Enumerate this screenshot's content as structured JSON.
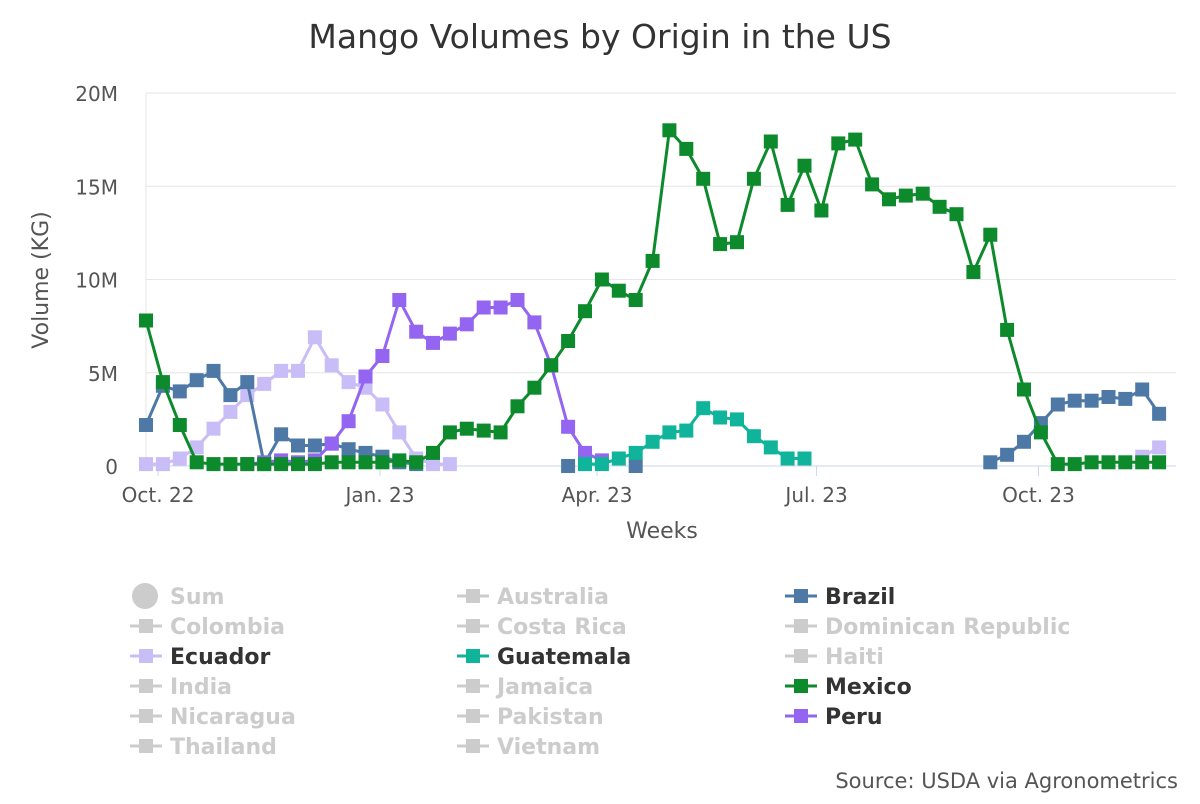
{
  "chart_data": {
    "type": "line",
    "title": "Mango Volumes by Origin in the US",
    "xlabel": "Weeks",
    "ylabel": "Volume (KG)",
    "source": "Source: USDA via Agronometrics",
    "ylim": [
      0,
      20000000
    ],
    "yticks": [
      {
        "value": 0,
        "label": "0"
      },
      {
        "value": 5000000,
        "label": "5M"
      },
      {
        "value": 10000000,
        "label": "10M"
      },
      {
        "value": 15000000,
        "label": "15M"
      },
      {
        "value": 20000000,
        "label": "20M"
      }
    ],
    "xlim": [
      "2022-09-26",
      "2023-11-27"
    ],
    "xticks": [
      {
        "date": "2022-10-01",
        "label": "Oct. 22"
      },
      {
        "date": "2023-01-01",
        "label": "Jan. 23"
      },
      {
        "date": "2023-04-01",
        "label": "Apr. 23"
      },
      {
        "date": "2023-07-01",
        "label": "Jul. 23"
      },
      {
        "date": "2023-10-01",
        "label": "Oct. 23"
      }
    ],
    "grid": {
      "horizontal": true,
      "vertical": false
    },
    "legend_position": "bottom",
    "series": [
      {
        "name": "Ecuador",
        "color": "#c9bdf7",
        "visible": true,
        "points": [
          [
            "2022-09-26",
            0.1
          ],
          [
            "2022-10-03",
            0.1
          ],
          [
            "2022-10-10",
            0.4
          ],
          [
            "2022-10-17",
            1.0
          ],
          [
            "2022-10-24",
            2.0
          ],
          [
            "2022-10-31",
            2.9
          ],
          [
            "2022-11-07",
            3.8
          ],
          [
            "2022-11-14",
            4.4
          ],
          [
            "2022-11-21",
            5.1
          ],
          [
            "2022-11-28",
            5.1
          ],
          [
            "2022-12-05",
            6.9
          ],
          [
            "2022-12-12",
            5.4
          ],
          [
            "2022-12-19",
            4.5
          ],
          [
            "2022-12-26",
            4.2
          ],
          [
            "2023-01-02",
            3.3
          ],
          [
            "2023-01-09",
            1.8
          ],
          [
            "2023-01-16",
            0.4
          ],
          [
            "2023-01-23",
            0.1
          ],
          [
            "2023-01-30",
            0.1
          ],
          null,
          [
            "2023-11-13",
            0.5
          ],
          [
            "2023-11-20",
            1.0
          ]
        ]
      },
      {
        "name": "Brazil",
        "color": "#4e79a7",
        "visible": true,
        "points": [
          [
            "2022-09-26",
            2.2
          ],
          [
            "2022-10-03",
            4.3
          ],
          [
            "2022-10-10",
            4.0
          ],
          [
            "2022-10-17",
            4.6
          ],
          [
            "2022-10-24",
            5.1
          ],
          [
            "2022-10-31",
            3.8
          ],
          [
            "2022-11-07",
            4.5
          ],
          [
            "2022-11-14",
            0.1
          ],
          [
            "2022-11-21",
            1.7
          ],
          [
            "2022-11-28",
            1.1
          ],
          [
            "2022-12-05",
            1.1
          ],
          [
            "2022-12-12",
            1.2
          ],
          [
            "2022-12-19",
            0.9
          ],
          [
            "2022-12-26",
            0.7
          ],
          [
            "2023-01-02",
            0.5
          ],
          [
            "2023-01-09",
            0.2
          ],
          [
            "2023-01-16",
            0.1
          ],
          null,
          [
            "2023-03-20",
            0.0
          ],
          null,
          [
            "2023-04-17",
            0.0
          ],
          null,
          [
            "2023-09-11",
            0.2
          ],
          [
            "2023-09-18",
            0.6
          ],
          [
            "2023-09-25",
            1.3
          ],
          [
            "2023-10-02",
            2.3
          ],
          [
            "2023-10-09",
            3.3
          ],
          [
            "2023-10-16",
            3.5
          ],
          [
            "2023-10-23",
            3.5
          ],
          [
            "2023-10-30",
            3.7
          ],
          [
            "2023-11-06",
            3.6
          ],
          [
            "2023-11-13",
            4.1
          ],
          [
            "2023-11-20",
            2.8
          ]
        ]
      },
      {
        "name": "Peru",
        "color": "#9465f0",
        "visible": true,
        "points": [
          [
            "2022-11-07",
            0.1
          ],
          [
            "2022-11-14",
            0.2
          ],
          [
            "2022-11-21",
            0.3
          ],
          [
            "2022-11-28",
            0.2
          ],
          [
            "2022-12-05",
            0.3
          ],
          [
            "2022-12-12",
            1.2
          ],
          [
            "2022-12-19",
            2.4
          ],
          [
            "2022-12-26",
            4.8
          ],
          [
            "2023-01-02",
            5.9
          ],
          [
            "2023-01-09",
            8.9
          ],
          [
            "2023-01-16",
            7.2
          ],
          [
            "2023-01-23",
            6.6
          ],
          [
            "2023-01-30",
            7.1
          ],
          [
            "2023-02-06",
            7.6
          ],
          [
            "2023-02-13",
            8.5
          ],
          [
            "2023-02-20",
            8.5
          ],
          [
            "2023-02-27",
            8.9
          ],
          [
            "2023-03-06",
            7.7
          ],
          [
            "2023-03-13",
            5.4
          ],
          [
            "2023-03-20",
            2.1
          ],
          [
            "2023-03-27",
            0.7
          ],
          [
            "2023-04-03",
            0.3
          ]
        ]
      },
      {
        "name": "Guatemala",
        "color": "#0fb49b",
        "visible": true,
        "points": [
          [
            "2023-03-27",
            0.1
          ],
          [
            "2023-04-03",
            0.1
          ],
          [
            "2023-04-10",
            0.4
          ],
          [
            "2023-04-17",
            0.7
          ],
          [
            "2023-04-24",
            1.3
          ],
          [
            "2023-05-01",
            1.8
          ],
          [
            "2023-05-08",
            1.9
          ],
          [
            "2023-05-15",
            3.1
          ],
          [
            "2023-05-22",
            2.6
          ],
          [
            "2023-05-29",
            2.5
          ],
          [
            "2023-06-05",
            1.6
          ],
          [
            "2023-06-12",
            1.0
          ],
          [
            "2023-06-19",
            0.4
          ],
          [
            "2023-06-26",
            0.4
          ]
        ]
      },
      {
        "name": "Mexico",
        "color": "#0c8a2c",
        "visible": true,
        "points": [
          [
            "2022-09-26",
            7.8
          ],
          [
            "2022-10-03",
            4.5
          ],
          [
            "2022-10-10",
            2.2
          ],
          [
            "2022-10-17",
            0.2
          ],
          [
            "2022-10-24",
            0.1
          ],
          [
            "2022-10-31",
            0.1
          ],
          [
            "2022-11-07",
            0.1
          ],
          [
            "2022-11-14",
            0.1
          ],
          [
            "2022-11-21",
            0.1
          ],
          [
            "2022-11-28",
            0.1
          ],
          [
            "2022-12-05",
            0.1
          ],
          [
            "2022-12-12",
            0.2
          ],
          [
            "2022-12-19",
            0.2
          ],
          [
            "2022-12-26",
            0.2
          ],
          [
            "2023-01-02",
            0.2
          ],
          [
            "2023-01-09",
            0.3
          ],
          [
            "2023-01-16",
            0.2
          ],
          [
            "2023-01-23",
            0.7
          ],
          [
            "2023-01-30",
            1.8
          ],
          [
            "2023-02-06",
            2.0
          ],
          [
            "2023-02-13",
            1.9
          ],
          [
            "2023-02-20",
            1.8
          ],
          [
            "2023-02-27",
            3.2
          ],
          [
            "2023-03-06",
            4.2
          ],
          [
            "2023-03-13",
            5.4
          ],
          [
            "2023-03-20",
            6.7
          ],
          [
            "2023-03-27",
            8.3
          ],
          [
            "2023-04-03",
            10.0
          ],
          [
            "2023-04-10",
            9.4
          ],
          [
            "2023-04-17",
            8.9
          ],
          [
            "2023-04-24",
            11.0
          ],
          [
            "2023-05-01",
            18.0
          ],
          [
            "2023-05-08",
            17.0
          ],
          [
            "2023-05-15",
            15.4
          ],
          [
            "2023-05-22",
            11.9
          ],
          [
            "2023-05-29",
            12.0
          ],
          [
            "2023-06-05",
            15.4
          ],
          [
            "2023-06-12",
            17.4
          ],
          [
            "2023-06-19",
            14.0
          ],
          [
            "2023-06-26",
            16.1
          ],
          [
            "2023-07-03",
            13.7
          ],
          [
            "2023-07-10",
            17.3
          ],
          [
            "2023-07-17",
            17.5
          ],
          [
            "2023-07-24",
            15.1
          ],
          [
            "2023-07-31",
            14.3
          ],
          [
            "2023-08-07",
            14.5
          ],
          [
            "2023-08-14",
            14.6
          ],
          [
            "2023-08-21",
            13.9
          ],
          [
            "2023-08-28",
            13.5
          ],
          [
            "2023-09-04",
            10.4
          ],
          [
            "2023-09-11",
            12.4
          ],
          [
            "2023-09-18",
            7.3
          ],
          [
            "2023-09-25",
            4.1
          ],
          [
            "2023-10-02",
            1.8
          ],
          [
            "2023-10-09",
            0.1
          ],
          [
            "2023-10-16",
            0.1
          ],
          [
            "2023-10-23",
            0.2
          ],
          [
            "2023-10-30",
            0.2
          ],
          [
            "2023-11-06",
            0.2
          ],
          [
            "2023-11-13",
            0.2
          ],
          [
            "2023-11-20",
            0.2
          ]
        ]
      }
    ],
    "series_unit": "millions of KG",
    "legend": [
      {
        "name": "Sum",
        "active": false,
        "symbol": "circle"
      },
      {
        "name": "Australia",
        "active": false
      },
      {
        "name": "Brazil",
        "active": true,
        "color": "#4e79a7"
      },
      {
        "name": "Colombia",
        "active": false
      },
      {
        "name": "Costa Rica",
        "active": false
      },
      {
        "name": "Dominican Republic",
        "active": false
      },
      {
        "name": "Ecuador",
        "active": true,
        "color": "#c9bdf7"
      },
      {
        "name": "Guatemala",
        "active": true,
        "color": "#0fb49b"
      },
      {
        "name": "Haiti",
        "active": false
      },
      {
        "name": "India",
        "active": false
      },
      {
        "name": "Jamaica",
        "active": false
      },
      {
        "name": "Mexico",
        "active": true,
        "color": "#0c8a2c"
      },
      {
        "name": "Nicaragua",
        "active": false
      },
      {
        "name": "Pakistan",
        "active": false
      },
      {
        "name": "Peru",
        "active": true,
        "color": "#9465f0"
      },
      {
        "name": "Thailand",
        "active": false
      },
      {
        "name": "Vietnam",
        "active": false
      }
    ],
    "colors": {
      "text": "#333333",
      "axis_text": "#555555",
      "grid": "#e6e6e6",
      "axis_line": "#ccd6eb",
      "inactive": "#cccccc"
    }
  }
}
